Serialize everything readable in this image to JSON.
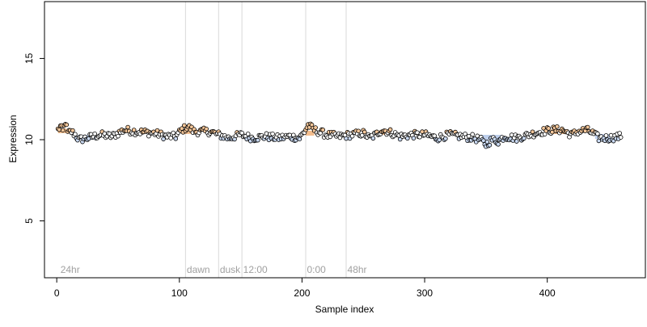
{
  "chart_data": {
    "type": "scatter",
    "title": "",
    "xlabel": "Sample index",
    "ylabel": "Expression",
    "xlim": [
      -10,
      480
    ],
    "ylim": [
      1.5,
      18.5
    ],
    "x_ticks": [
      0,
      100,
      200,
      300,
      400
    ],
    "y_ticks": [
      5,
      10,
      15
    ],
    "x_tick_labels": [
      "0",
      "100",
      "200",
      "300",
      "400"
    ],
    "y_tick_labels": [
      "5",
      "10",
      "15"
    ],
    "grid": false,
    "legend": "none",
    "colors": {
      "point_outline": "#000000",
      "peach_fill": "#f5c79a",
      "light_blue_fill": "#c9d9f2",
      "white_fill": "#ffffff",
      "highlight_orange": "#f0a868",
      "highlight_blue": "#a9bfe6",
      "separator": "#d9d9d9",
      "annotation_text": "#a0a0a0"
    },
    "vertical_lines": [
      105,
      132,
      151,
      203,
      236
    ],
    "annotations": [
      {
        "x": 3,
        "text": "24hr"
      },
      {
        "x": 106,
        "text": "dawn"
      },
      {
        "x": 133,
        "text": "dusk"
      },
      {
        "x": 152,
        "text": "12:00"
      },
      {
        "x": 204,
        "text": "0:00"
      },
      {
        "x": 237,
        "text": "48hr"
      }
    ],
    "highlight_segments": [
      {
        "x0": 1,
        "x1": 8,
        "y": 10.55,
        "color": "orange"
      },
      {
        "x0": 17,
        "x1": 30,
        "y": 10.15,
        "color": "blue"
      },
      {
        "x0": 103,
        "x1": 112,
        "y": 10.5,
        "color": "orange"
      },
      {
        "x0": 203,
        "x1": 210,
        "y": 10.4,
        "color": "orange"
      },
      {
        "x0": 263,
        "x1": 270,
        "y": 10.45,
        "color": "orange"
      },
      {
        "x0": 346,
        "x1": 363,
        "y": 10.15,
        "color": "blue"
      },
      {
        "x0": 403,
        "x1": 414,
        "y": 10.5,
        "color": "orange"
      },
      {
        "x0": 439,
        "x1": 452,
        "y": 10.2,
        "color": "blue"
      }
    ],
    "n_points": 460,
    "anchors": [
      [
        1,
        10.6
      ],
      [
        3,
        10.8
      ],
      [
        5,
        10.5
      ],
      [
        7,
        11.1
      ],
      [
        9,
        10.4
      ],
      [
        12,
        10.5
      ],
      [
        15,
        10.3
      ],
      [
        18,
        10.0
      ],
      [
        25,
        10.1
      ],
      [
        35,
        10.3
      ],
      [
        45,
        10.2
      ],
      [
        55,
        10.6
      ],
      [
        65,
        10.5
      ],
      [
        80,
        10.4
      ],
      [
        90,
        10.2
      ],
      [
        97,
        10.2
      ],
      [
        102,
        10.6
      ],
      [
        107,
        10.8
      ],
      [
        112,
        10.5
      ],
      [
        125,
        10.5
      ],
      [
        132,
        10.3
      ],
      [
        140,
        10.1
      ],
      [
        150,
        10.3
      ],
      [
        160,
        10.1
      ],
      [
        170,
        10.2
      ],
      [
        180,
        10.1
      ],
      [
        190,
        10.2
      ],
      [
        198,
        10.1
      ],
      [
        202,
        10.5
      ],
      [
        205,
        10.9
      ],
      [
        210,
        10.6
      ],
      [
        220,
        10.3
      ],
      [
        230,
        10.2
      ],
      [
        240,
        10.3
      ],
      [
        250,
        10.4
      ],
      [
        255,
        10.1
      ],
      [
        260,
        10.3
      ],
      [
        265,
        10.6
      ],
      [
        270,
        10.5
      ],
      [
        280,
        10.2
      ],
      [
        290,
        10.3
      ],
      [
        300,
        10.3
      ],
      [
        310,
        10.1
      ],
      [
        320,
        10.3
      ],
      [
        330,
        10.2
      ],
      [
        340,
        10.1
      ],
      [
        345,
        10.0
      ],
      [
        350,
        9.7
      ],
      [
        355,
        10.0
      ],
      [
        360,
        9.9
      ],
      [
        365,
        10.2
      ],
      [
        375,
        10.1
      ],
      [
        385,
        10.3
      ],
      [
        395,
        10.5
      ],
      [
        405,
        10.6
      ],
      [
        412,
        10.6
      ],
      [
        420,
        10.3
      ],
      [
        425,
        10.5
      ],
      [
        432,
        10.6
      ],
      [
        437,
        10.4
      ],
      [
        442,
        10.1
      ],
      [
        450,
        10.1
      ],
      [
        460,
        10.2
      ]
    ]
  }
}
